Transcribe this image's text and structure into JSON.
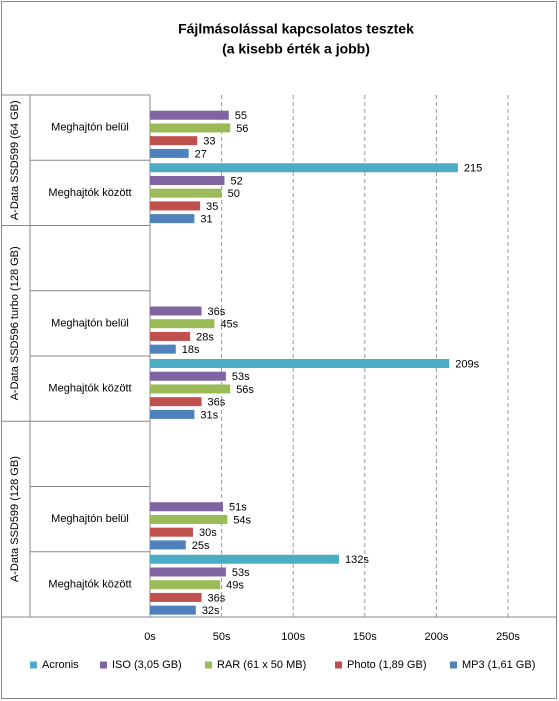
{
  "chart_data": {
    "type": "bar",
    "orientation": "horizontal",
    "title": "Fájlmásolással kapcsolatos tesztek",
    "subtitle": "(a kisebb érték a jobb)",
    "groups": [
      {
        "name": "A-Data SSD599 (64 GB)",
        "size": 2
      },
      {
        "name": "A-Data SSD596 turbo (128 GB)",
        "size": 3
      },
      {
        "name": "A-Data SSD599 (128 GB)",
        "size": 3
      }
    ],
    "categories": [
      "Meghajtón belül",
      "Meghajtók között",
      null,
      "Meghajtón belül",
      "Meghajtók között",
      null,
      "Meghajtón belül",
      "Meghajtók között"
    ],
    "series": [
      {
        "name": "Acronis",
        "color": "#4bacc6",
        "values": [
          null,
          215,
          null,
          null,
          209,
          null,
          null,
          132
        ],
        "value_labels": [
          null,
          null,
          null,
          null,
          "209s",
          null,
          null,
          "132s"
        ]
      },
      {
        "name": "ISO (3,05 GB)",
        "color": "#8064a2",
        "values": [
          55,
          52,
          null,
          36,
          53,
          null,
          51,
          53
        ],
        "value_labels": [
          null,
          null,
          null,
          "36s",
          "53s",
          null,
          "51s",
          "53s"
        ]
      },
      {
        "name": "RAR (61 x 50 MB)",
        "color": "#9bbb59",
        "values": [
          56,
          50,
          null,
          45,
          56,
          null,
          54,
          49
        ],
        "value_labels": [
          null,
          null,
          null,
          "45s",
          "56s",
          null,
          "54s",
          "49s"
        ]
      },
      {
        "name": "Photo (1,89 GB)",
        "color": "#c0504d",
        "values": [
          33,
          35,
          null,
          28,
          36,
          null,
          30,
          36
        ],
        "value_labels": [
          null,
          null,
          null,
          "28s",
          "36s",
          null,
          "30s",
          "36s"
        ]
      },
      {
        "name": "MP3 (1,61 GB)",
        "color": "#4f81bd",
        "values": [
          27,
          31,
          null,
          18,
          31,
          null,
          25,
          32
        ],
        "value_labels": [
          null,
          null,
          null,
          "18s",
          "31s",
          null,
          "25s",
          "32s"
        ]
      }
    ],
    "xlim": [
      0,
      250
    ],
    "xticks": [
      {
        "value": 0,
        "label": "0s"
      },
      {
        "value": 50,
        "label": "50s"
      },
      {
        "value": 100,
        "label": "100s"
      },
      {
        "value": 150,
        "label": "150s"
      },
      {
        "value": 200,
        "label": "200s"
      },
      {
        "value": 250,
        "label": "250s"
      }
    ],
    "grid": true,
    "legend": "bottom"
  }
}
